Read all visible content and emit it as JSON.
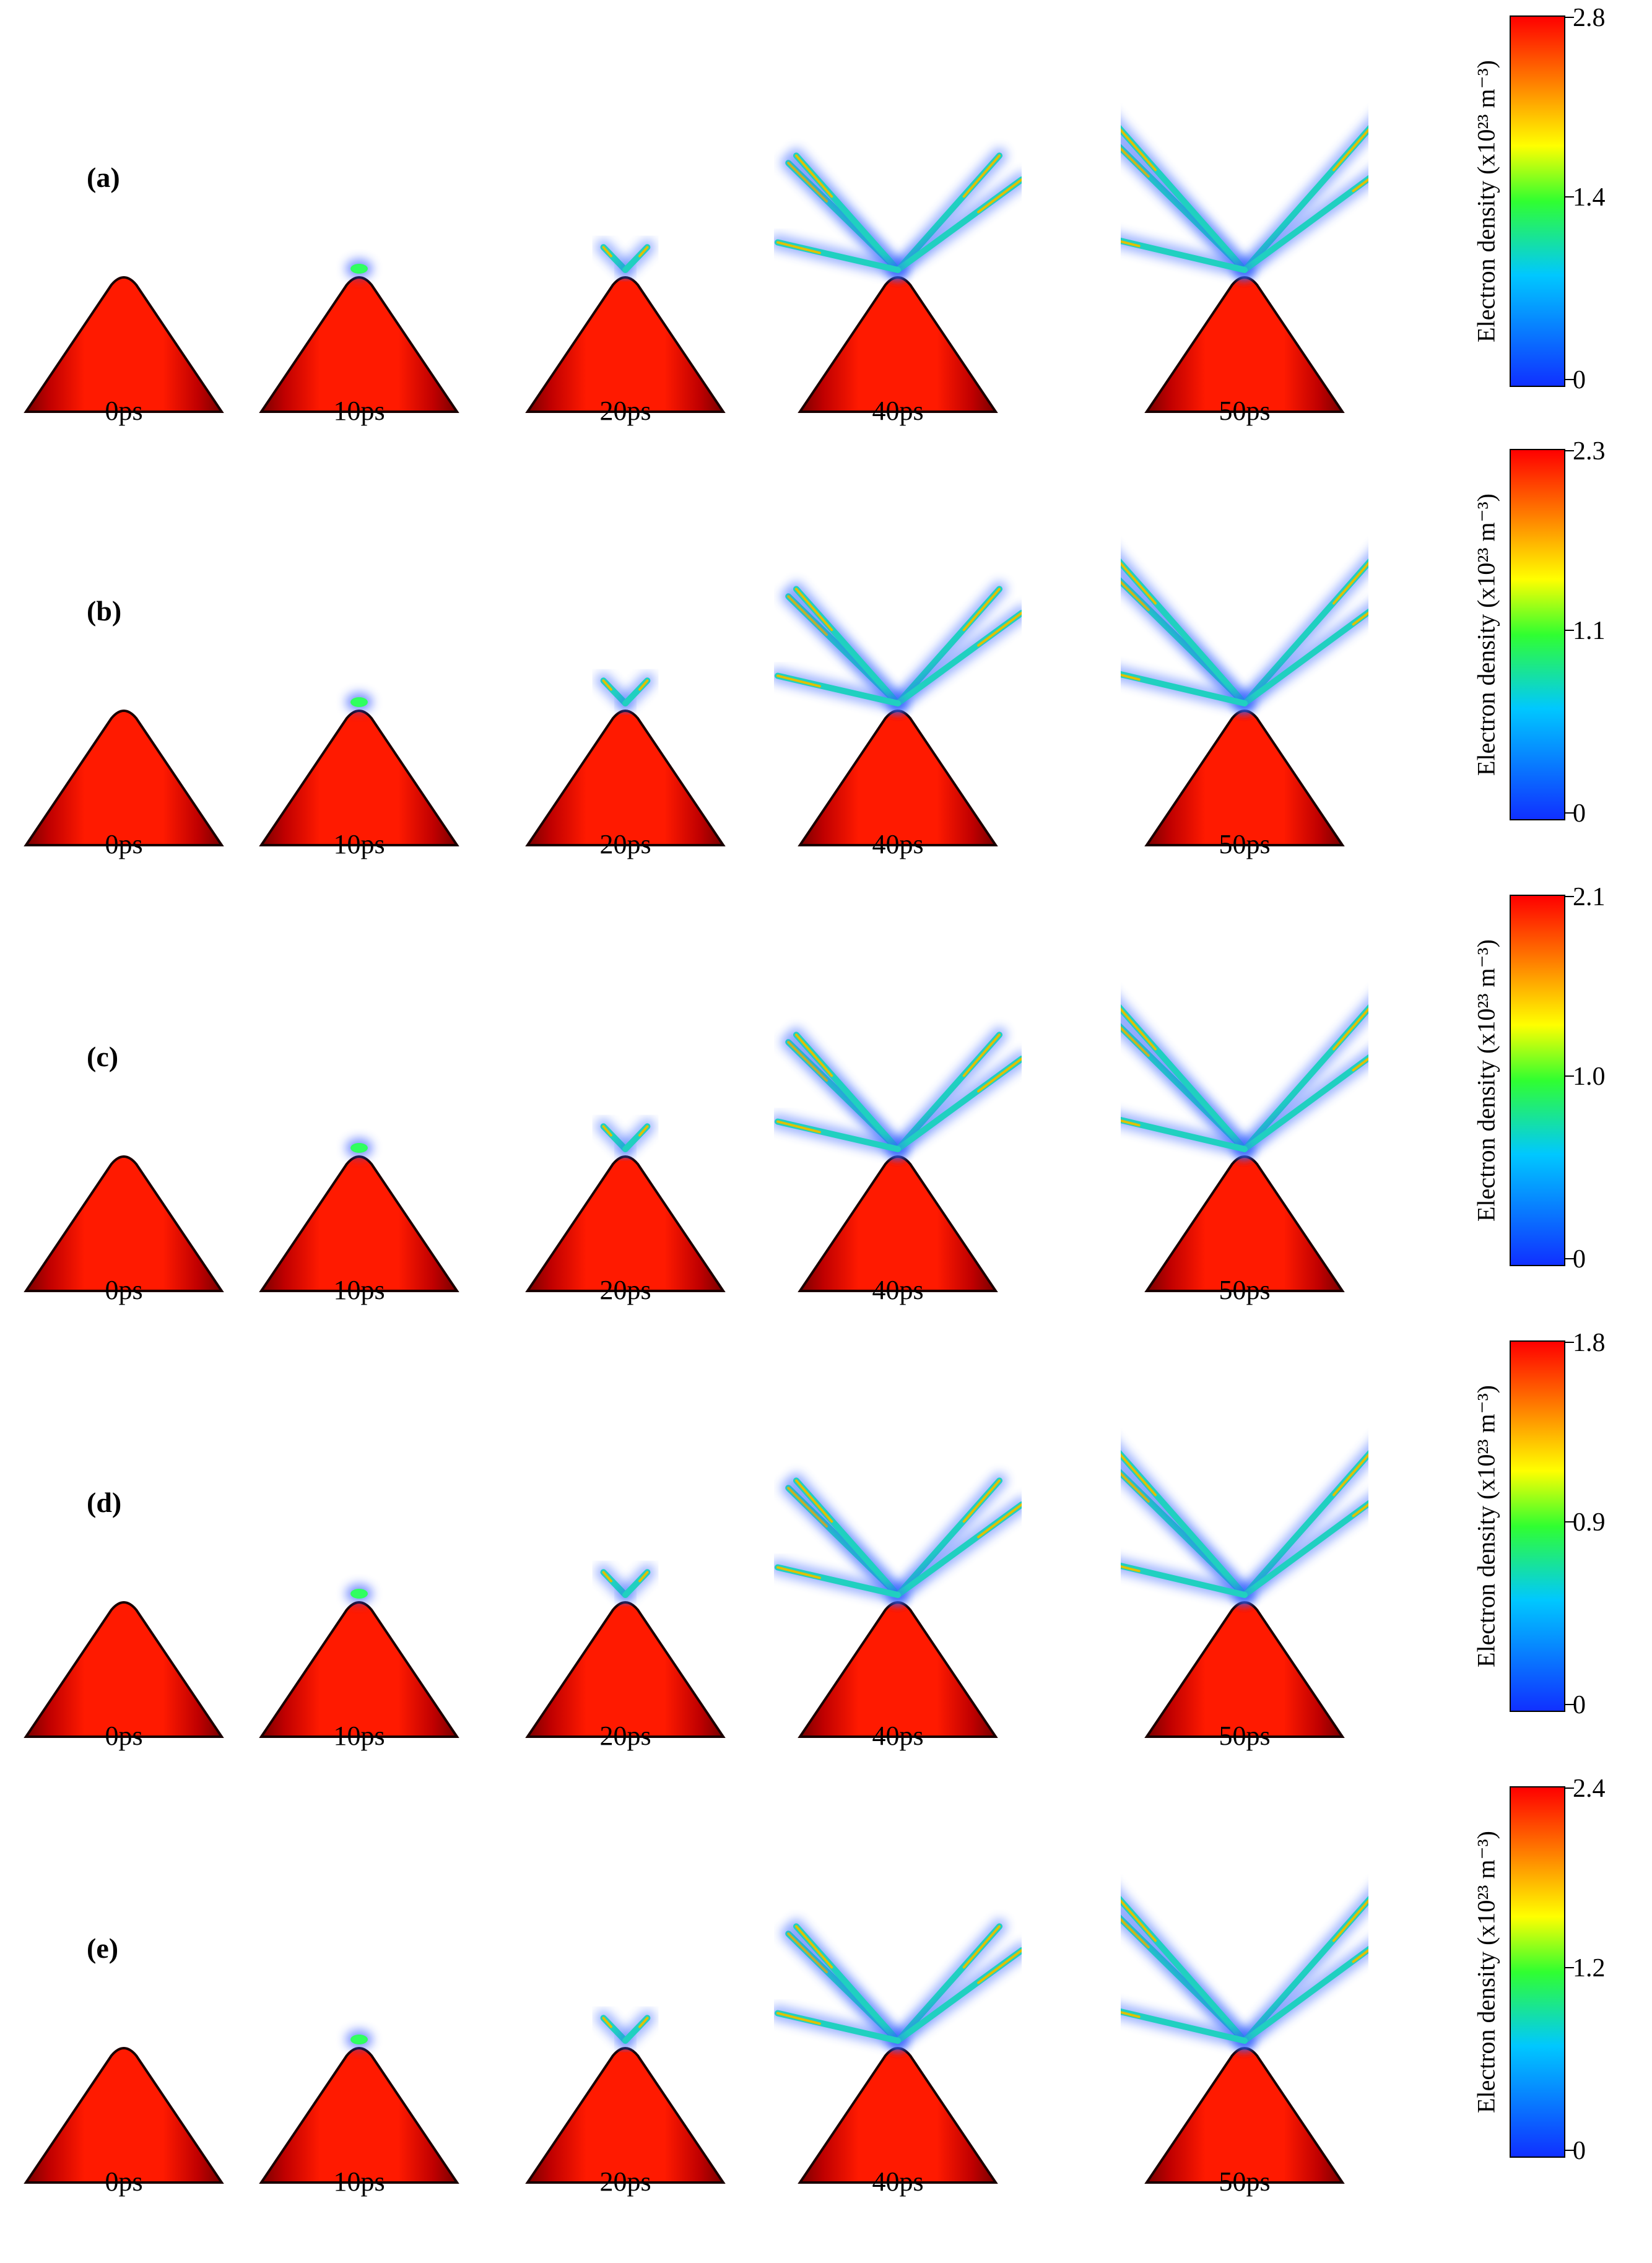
{
  "colors": {
    "tip": "#ff1a00",
    "tip_dark": "#6e0000",
    "colormap": [
      "#1030ff",
      "#00c8ff",
      "#30ff30",
      "#00ff80",
      "#ffff00",
      "#ff8000",
      "#ff0000"
    ]
  },
  "time_labels": [
    "0ps",
    "10ps",
    "20ps",
    "40ps",
    "50ps"
  ],
  "colorbar_label": "Electron density (x10²³ m⁻³)",
  "panels": [
    {
      "label": "(a)",
      "ticks": [
        "2.8",
        "1.4",
        "0"
      ]
    },
    {
      "label": "(b)",
      "ticks": [
        "2.3",
        "1.1",
        "0"
      ]
    },
    {
      "label": "(c)",
      "ticks": [
        "2.1",
        "1.0",
        "0"
      ]
    },
    {
      "label": "(d)",
      "ticks": [
        "1.8",
        "0.9",
        "0"
      ]
    },
    {
      "label": "(e)",
      "ticks": [
        "2.4",
        "1.2",
        "0"
      ]
    }
  ]
}
